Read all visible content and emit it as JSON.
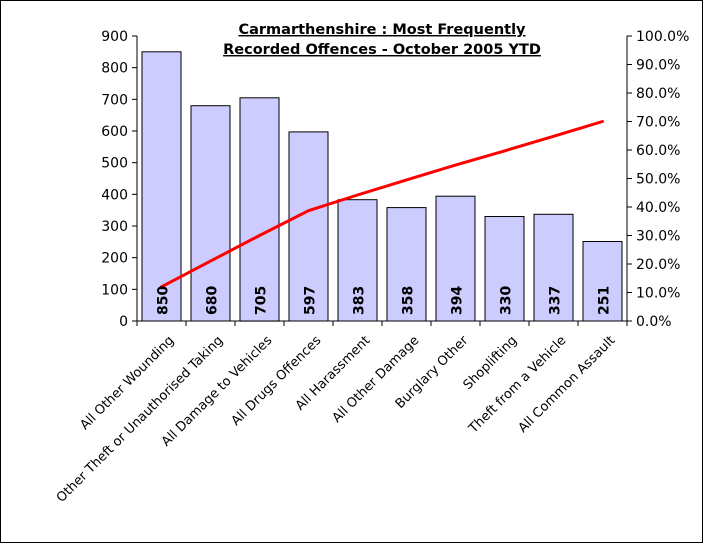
{
  "chart_data": {
    "type": "bar",
    "title_line1": "Carmarthenshire : Most Frequently",
    "title_line2": "Recorded Offences - October 2005 YTD",
    "categories": [
      "All Other Wounding",
      "Other Theft or Unauthorised Taking",
      "All Damage to Vehicles",
      "All Drugs Offences",
      "All Harassment",
      "All Other Damage",
      "Burglary Other",
      "Shoplifting",
      "Theft from a Vehicle",
      "All Common Assault"
    ],
    "series": [
      {
        "type": "bar",
        "axis": "left",
        "values": [
          850,
          680,
          705,
          597,
          383,
          358,
          394,
          330,
          337,
          251
        ],
        "color": "#CCCCFF"
      },
      {
        "type": "line",
        "axis": "right",
        "values": [
          0.12,
          0.21,
          0.3,
          0.387,
          0.442,
          0.495,
          0.547,
          0.597,
          0.648,
          0.7
        ],
        "color": "#FF0000"
      }
    ],
    "ylim": [
      0,
      900
    ],
    "y_ticks": [
      "0",
      "100",
      "200",
      "300",
      "400",
      "500",
      "600",
      "700",
      "800",
      "900"
    ],
    "y2lim": [
      0,
      1
    ],
    "y2_ticks": [
      "0.0%",
      "10.0%",
      "20.0%",
      "30.0%",
      "40.0%",
      "50.0%",
      "60.0%",
      "70.0%",
      "80.0%",
      "90.0%",
      "100.0%"
    ],
    "grid": false,
    "legend": "none"
  }
}
